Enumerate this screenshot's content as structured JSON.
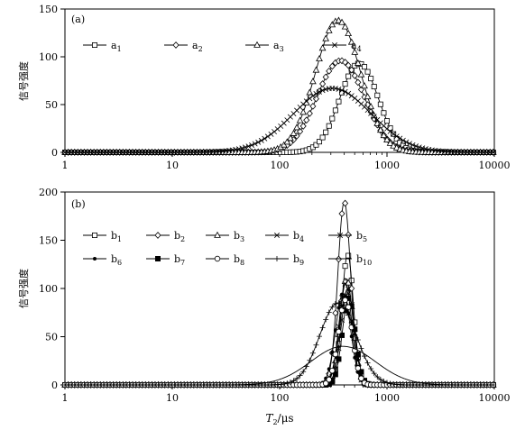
{
  "chart_data": [
    {
      "type": "line",
      "panel_label": "(a)",
      "ylabel": "信号强度",
      "x_scale": "log",
      "xlim": [
        1,
        10000
      ],
      "ylim": [
        0,
        150
      ],
      "x_ticks": [
        "1",
        "10",
        "100",
        "1000",
        "10000"
      ],
      "y_ticks": [
        "0",
        "50",
        "100",
        "150"
      ],
      "grid": false,
      "legend_position": "top-left",
      "series": [
        {
          "name": "a",
          "subscript": "1",
          "marker": "square",
          "color": "#000000",
          "peak_x": 550,
          "peak_y": 93,
          "sigma_log10": 0.18,
          "x": [
            20,
            50,
            100,
            200,
            300,
            400,
            500,
            550,
            650,
            800,
            1000,
            1500
          ],
          "y": [
            0,
            3,
            11,
            32,
            60,
            80,
            91,
            93,
            88,
            55,
            15,
            0
          ]
        },
        {
          "name": "a",
          "subscript": "2",
          "marker": "diamond",
          "color": "#000000",
          "peak_x": 370,
          "peak_y": 96,
          "sigma_log10": 0.22,
          "x": [
            20,
            50,
            100,
            200,
            300,
            370,
            500,
            700,
            900,
            1200
          ],
          "y": [
            0,
            10,
            39,
            78,
            94,
            96,
            86,
            45,
            12,
            0
          ]
        },
        {
          "name": "a",
          "subscript": "3",
          "marker": "triangle",
          "color": "#000000",
          "peak_x": 350,
          "peak_y": 138,
          "sigma_log10": 0.21,
          "x": [
            20,
            50,
            100,
            200,
            300,
            350,
            450,
            550,
            650,
            800
          ],
          "y": [
            0,
            10,
            50,
            110,
            135,
            138,
            120,
            75,
            35,
            0
          ]
        },
        {
          "name": "a",
          "subscript": "4",
          "marker": "x",
          "color": "#000000",
          "peak_x": 310,
          "peak_y": 67,
          "sigma_log10": 0.36,
          "x": [
            20,
            50,
            100,
            200,
            310,
            500,
            1000,
            2000,
            4000
          ],
          "y": [
            0,
            10,
            30,
            58,
            67,
            60,
            30,
            5,
            0
          ]
        }
      ]
    },
    {
      "type": "line",
      "panel_label": "(b)",
      "ylabel": "信号强度",
      "xlabel": "T2/μs",
      "x_scale": "log",
      "xlim": [
        1,
        10000
      ],
      "ylim": [
        0,
        200
      ],
      "x_ticks": [
        "1",
        "10",
        "100",
        "1000",
        "10000"
      ],
      "y_ticks": [
        "0",
        "50",
        "100",
        "150",
        "200"
      ],
      "grid": false,
      "legend_position": "top-left",
      "series": [
        {
          "name": "b",
          "subscript": "1",
          "marker": "square",
          "color": "#000000",
          "peak_x": 430,
          "peak_y": 135,
          "sigma_log10": 0.055,
          "x": [
            250,
            320,
            380,
            430,
            500,
            580,
            700
          ],
          "y": [
            0,
            35,
            105,
            135,
            100,
            40,
            0
          ]
        },
        {
          "name": "b",
          "subscript": "2",
          "marker": "diamond",
          "color": "#000000",
          "peak_x": 400,
          "peak_y": 190,
          "sigma_log10": 0.06,
          "x": [
            220,
            300,
            360,
            400,
            450,
            530,
            650
          ],
          "y": [
            0,
            60,
            160,
            190,
            160,
            60,
            0
          ]
        },
        {
          "name": "b",
          "subscript": "3",
          "marker": "triangle",
          "color": "#000000",
          "peak_x": 420,
          "peak_y": 110,
          "sigma_log10": 0.06,
          "x": [
            230,
            320,
            380,
            420,
            480,
            560,
            680
          ],
          "y": [
            0,
            35,
            90,
            110,
            90,
            35,
            0
          ]
        },
        {
          "name": "b",
          "subscript": "4",
          "marker": "x",
          "color": "#000000",
          "peak_x": 410,
          "peak_y": 105,
          "sigma_log10": 0.06,
          "x": [
            230,
            320,
            370,
            410,
            470,
            550,
            680
          ],
          "y": [
            0,
            30,
            85,
            105,
            85,
            30,
            0
          ]
        },
        {
          "name": "b",
          "subscript": "5",
          "marker": "asterisk",
          "color": "#000000",
          "peak_x": 430,
          "peak_y": 100,
          "sigma_log10": 0.06,
          "x": [
            240,
            330,
            390,
            430,
            490,
            570,
            690
          ],
          "y": [
            0,
            30,
            80,
            100,
            80,
            30,
            0
          ]
        },
        {
          "name": "b",
          "subscript": "6",
          "marker": "dot",
          "color": "#000000",
          "peak_x": 390,
          "peak_y": 95,
          "sigma_log10": 0.07,
          "x": [
            210,
            300,
            350,
            390,
            450,
            540,
            680
          ],
          "y": [
            0,
            30,
            75,
            95,
            75,
            25,
            0
          ]
        },
        {
          "name": "b",
          "subscript": "7",
          "marker": "filled-square",
          "color": "#000000",
          "peak_x": 440,
          "peak_y": 90,
          "sigma_log10": 0.06,
          "x": [
            250,
            340,
            400,
            440,
            500,
            580,
            700
          ],
          "y": [
            0,
            25,
            75,
            90,
            75,
            25,
            0
          ]
        },
        {
          "name": "b",
          "subscript": "8",
          "marker": "circle",
          "color": "#000000",
          "peak_x": 410,
          "peak_y": 88,
          "sigma_log10": 0.065,
          "x": [
            220,
            310,
            370,
            410,
            470,
            560,
            690
          ],
          "y": [
            0,
            25,
            70,
            88,
            70,
            25,
            0
          ]
        },
        {
          "name": "b",
          "subscript": "9",
          "marker": "plus",
          "color": "#000000",
          "peak_x": 350,
          "peak_y": 85,
          "sigma_log10": 0.17,
          "x": [
            100,
            150,
            200,
            280,
            350,
            420,
            500,
            600
          ],
          "y": [
            0,
            15,
            40,
            75,
            85,
            70,
            25,
            0
          ]
        },
        {
          "name": "b",
          "subscript": "10",
          "marker": "none",
          "color": "#000000",
          "peak_x": 390,
          "peak_y": 40,
          "sigma_log10": 0.3,
          "x": [
            70,
            100,
            150,
            250,
            390,
            500,
            600,
            700
          ],
          "y": [
            0,
            5,
            17,
            33,
            40,
            30,
            12,
            0
          ]
        }
      ]
    }
  ]
}
